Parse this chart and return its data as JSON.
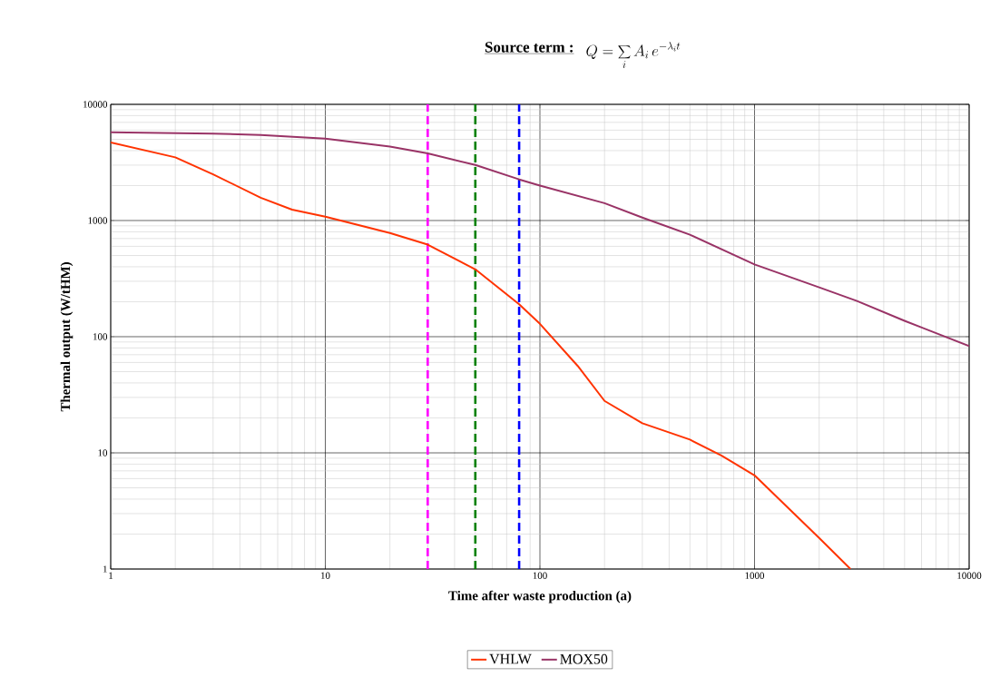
{
  "chart_data": {
    "type": "line",
    "title": "Source term :",
    "subtitle": "Q = \\sum_{i} A_{i}\\, e^{-\\lambda_{i} t}",
    "xlabel": "Time after waste production (a)",
    "ylabel": "Thermal output (W/tHM)",
    "log": "xy",
    "xlim": [
      1,
      10000
    ],
    "ylim": [
      1,
      10000
    ],
    "xticks": [
      1,
      10,
      100,
      1000,
      10000
    ],
    "yticks": [
      1,
      10,
      100,
      1000,
      10000
    ],
    "grid": true,
    "legend": "bottom",
    "marker": "none",
    "line_style": "solid",
    "series": [
      {
        "name": "VHLW",
        "color": "#ff3300",
        "x": [
          1,
          2,
          3,
          5,
          7,
          10,
          20,
          30,
          50,
          80,
          100,
          150,
          200,
          300,
          500,
          700,
          1000,
          2000,
          2800
        ],
        "values": [
          4700,
          3500,
          2500,
          1570,
          1240,
          1080,
          780,
          620,
          380,
          190,
          129,
          56,
          28,
          18,
          13,
          9.5,
          6.4,
          1.85,
          1
        ]
      },
      {
        "name": "MOX50",
        "color": "#993366",
        "x": [
          1,
          3,
          5,
          10,
          20,
          30,
          50,
          80,
          100,
          200,
          300,
          500,
          1000,
          2000,
          3000,
          5000,
          10000
        ],
        "values": [
          5760,
          5600,
          5460,
          5070,
          4340,
          3780,
          3010,
          2260,
          2000,
          1410,
          1060,
          755,
          419,
          266,
          203,
          137,
          83
        ]
      }
    ],
    "ref_lines": [
      {
        "axis": "x",
        "value": 30,
        "color": "#ff00ff",
        "line_style": "dashed"
      },
      {
        "axis": "x",
        "value": 50,
        "color": "#008000",
        "line_style": "dashed"
      },
      {
        "axis": "x",
        "value": 80,
        "color": "#0000ff",
        "line_style": "dashed"
      }
    ]
  }
}
